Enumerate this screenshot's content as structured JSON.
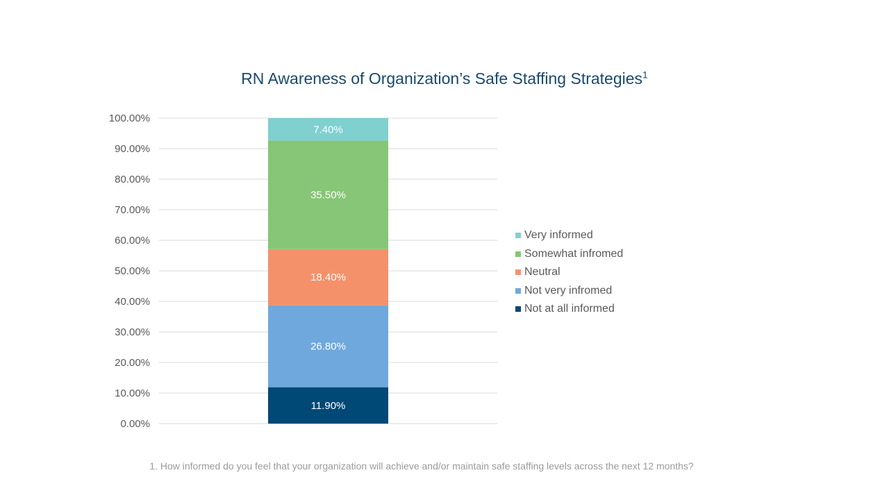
{
  "title": {
    "text": "RN Awareness of Organization’s Safe Staffing Strategies",
    "superscript": "1"
  },
  "footnote": "1. How informed do you feel that your organization will achieve and/or maintain safe staffing levels across the next 12 months?",
  "chart_data": {
    "type": "bar",
    "stacked": true,
    "title": "RN Awareness of Organization’s Safe Staffing Strategies",
    "categories": [
      ""
    ],
    "ylim": [
      0,
      100
    ],
    "yticks": [
      0,
      10,
      20,
      30,
      40,
      50,
      60,
      70,
      80,
      90,
      100
    ],
    "ytick_labels": [
      "0.00%",
      "10.00%",
      "20.00%",
      "30.00%",
      "40.00%",
      "50.00%",
      "60.00%",
      "70.00%",
      "80.00%",
      "90.00%",
      "100.00%"
    ],
    "grid": true,
    "legend_position": "right",
    "series": [
      {
        "name": "Not at all informed",
        "values": [
          11.9
        ],
        "label": "11.90%",
        "color": "#004876"
      },
      {
        "name": "Not very infromed",
        "values": [
          26.8
        ],
        "label": "26.80%",
        "color": "#6fa8dc"
      },
      {
        "name": "Neutral",
        "values": [
          18.4
        ],
        "label": "18.40%",
        "color": "#f4916a"
      },
      {
        "name": "Somewhat infromed",
        "values": [
          35.5
        ],
        "label": "35.50%",
        "color": "#86c676"
      },
      {
        "name": "Very informed",
        "values": [
          7.4
        ],
        "label": "7.40%",
        "color": "#80d0d0"
      }
    ]
  }
}
